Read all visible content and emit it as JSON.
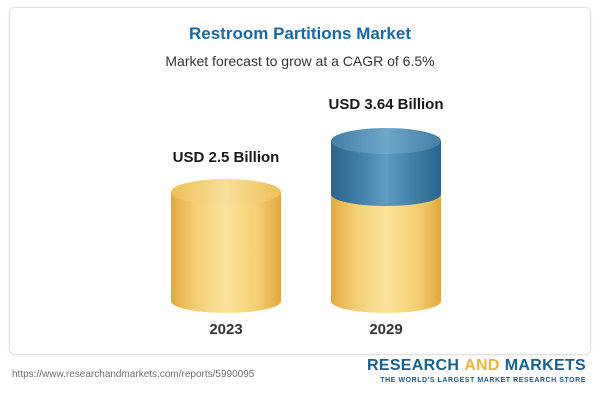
{
  "header": {
    "title": "Restroom Partitions Market",
    "subtitle": "Market forecast to grow at a CAGR of 6.5%"
  },
  "bars": [
    {
      "year": "2023",
      "label": "USD 2.5 Billion"
    },
    {
      "year": "2029",
      "label": "USD 3.64 Billion"
    }
  ],
  "footer": {
    "url": "https://www.researchandmarkets.com/reports/5990095",
    "logo": {
      "word1": "RESEARCH",
      "word2": "AND",
      "word3": "MARKETS",
      "tagline": "THE WORLD'S LARGEST MARKET RESEARCH STORE"
    }
  },
  "chart_data": {
    "type": "bar",
    "bar_style": "3d-cylinder",
    "title": "Restroom Partitions Market",
    "subtitle": "Market forecast to grow at a CAGR of 6.5%",
    "categories": [
      "2023",
      "2029"
    ],
    "values": [
      2.5,
      3.64
    ],
    "unit": "USD Billion",
    "data_labels": [
      "USD 2.5 Billion",
      "USD 3.64 Billion"
    ],
    "cagr_percent": 6.5,
    "colors": {
      "base_segment": "#f2cf72",
      "growth_segment": "#4584ab",
      "title": "#1769a8"
    },
    "legend": "none",
    "grid": "off",
    "layout_hint": "2029 cylinder shows base value in yellow with growth portion stacked in blue on top"
  }
}
